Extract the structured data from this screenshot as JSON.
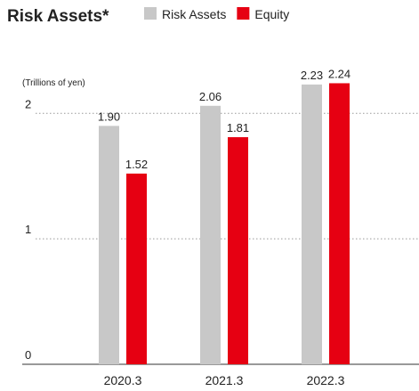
{
  "chart_data": {
    "type": "bar",
    "title": "Risk Assets*",
    "y_label": "(Trillions of yen)",
    "categories": [
      "2020.3",
      "2021.3",
      "2022.3"
    ],
    "series": [
      {
        "name": "Risk Assets",
        "color": "#c8c8c8",
        "values": [
          1.9,
          2.06,
          2.23
        ],
        "value_labels": [
          "1.90",
          "2.06",
          "2.23"
        ]
      },
      {
        "name": "Equity",
        "color": "#e60012",
        "values": [
          1.52,
          1.81,
          2.24
        ],
        "value_labels": [
          "1.52",
          "1.81",
          "2.24"
        ]
      }
    ],
    "ylim": [
      0,
      2.3
    ],
    "yticks": [
      0,
      1,
      2
    ],
    "grid": true
  }
}
